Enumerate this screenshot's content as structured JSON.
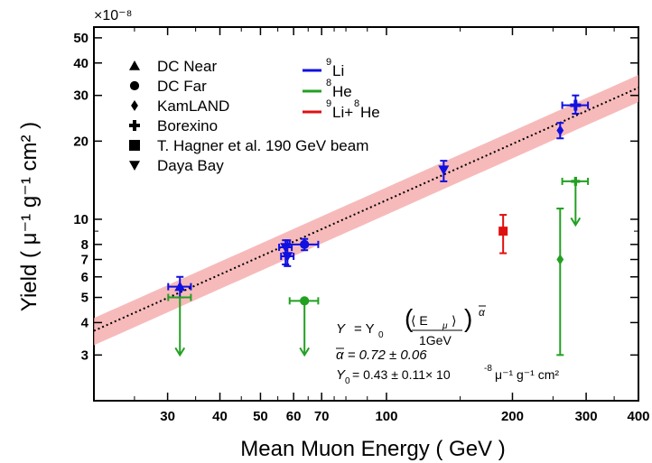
{
  "chart_data": {
    "type": "scatter",
    "title": "",
    "xlabel": "Mean Muon Energy ( GeV )",
    "ylabel": "Yield ( μ⁻¹ g⁻¹ cm² )",
    "x_scale": "log",
    "y_scale": "log",
    "xlim": [
      20,
      400
    ],
    "ylim": [
      2e-08,
      5.5e-07
    ],
    "y_multiplier_label": "×10⁻⁸",
    "x_ticks": [
      {
        "v": 30,
        "label": "30"
      },
      {
        "v": 40,
        "label": "40"
      },
      {
        "v": 50,
        "label": "50"
      },
      {
        "v": 60,
        "label": "60"
      },
      {
        "v": 70,
        "label": "70"
      },
      {
        "v": 100,
        "label": "100"
      },
      {
        "v": 200,
        "label": "200"
      },
      {
        "v": 300,
        "label": "300"
      },
      {
        "v": 400,
        "label": "400"
      }
    ],
    "y_ticks": [
      {
        "v": 3,
        "label": "3"
      },
      {
        "v": 4,
        "label": "4"
      },
      {
        "v": 5,
        "label": "5"
      },
      {
        "v": 6,
        "label": "6"
      },
      {
        "v": 7,
        "label": "7"
      },
      {
        "v": 8,
        "label": "8"
      },
      {
        "v": 10,
        "label": "10"
      },
      {
        "v": 20,
        "label": "20"
      },
      {
        "v": 30,
        "label": "30"
      },
      {
        "v": 40,
        "label": "40"
      },
      {
        "v": 50,
        "label": "50"
      }
    ],
    "marker_legend": [
      {
        "marker": "triangle-up",
        "label": "DC Near"
      },
      {
        "marker": "circle",
        "label": "DC Far"
      },
      {
        "marker": "diamond",
        "label": "KamLAND"
      },
      {
        "marker": "plus",
        "label": "Borexino"
      },
      {
        "marker": "square",
        "label": "T. Hagner et al. 190 GeV beam"
      },
      {
        "marker": "triangle-down",
        "label": "Daya Bay"
      }
    ],
    "color_legend": [
      {
        "color": "#1010e0",
        "sup": "9",
        "label": "Li"
      },
      {
        "color": "#22a022",
        "sup": "8",
        "label": "He"
      },
      {
        "color": "#e01010",
        "sup": "9",
        "label": "Li+",
        "sup2": "8",
        "label2": "He"
      }
    ],
    "points": [
      {
        "experiment": "DC Near",
        "isotope": "9Li",
        "marker": "triangle-up",
        "color": "#1010e0",
        "x": 32.1,
        "y": 5.5,
        "xerr": 2.0,
        "ylo": 5.0,
        "yhi": 6.0
      },
      {
        "experiment": "DC Near",
        "isotope": "8He",
        "marker": "triangle-down",
        "color": "#22a022",
        "x": 32.1,
        "y": 5.0,
        "xerr": 2.0,
        "upper_limit": true,
        "arrow_to": 3.0
      },
      {
        "experiment": "DC Far",
        "isotope": "9Li",
        "marker": "circle",
        "color": "#1010e0",
        "x": 63.7,
        "y": 8.0,
        "xerr": 5.0,
        "ylo": 7.6,
        "yhi": 8.4
      },
      {
        "experiment": "DC Far",
        "isotope": "8He",
        "marker": "circle",
        "color": "#22a022",
        "x": 63.7,
        "y": 4.85,
        "xerr": 5.0,
        "upper_limit": true,
        "arrow_to": 3.0
      },
      {
        "experiment": "Daya Bay",
        "isotope": "9Li",
        "marker": "triangle-down",
        "color": "#1010e0",
        "x": 57.4,
        "y": 7.8,
        "xerr": 2.0,
        "ylo": 6.7,
        "yhi": 8.3
      },
      {
        "experiment": "Daya Bay",
        "isotope": "9Li",
        "marker": "triangle-down",
        "color": "#1010e0",
        "x": 58.0,
        "y": 7.2,
        "xerr": 2.0,
        "ylo": 6.6,
        "yhi": 8.3
      },
      {
        "experiment": "Daya Bay",
        "isotope": "9Li",
        "marker": "triangle-down",
        "color": "#1010e0",
        "x": 137,
        "y": 15.5,
        "xerr": 0,
        "ylo": 14.0,
        "yhi": 16.8
      },
      {
        "experiment": "KamLAND",
        "isotope": "9Li",
        "marker": "diamond",
        "color": "#1010e0",
        "x": 260,
        "y": 22.0,
        "xerr": 0,
        "ylo": 20.5,
        "yhi": 23.5
      },
      {
        "experiment": "KamLAND",
        "isotope": "8He",
        "marker": "diamond",
        "color": "#22a022",
        "x": 260,
        "y": 7.0,
        "xerr": 0,
        "ylo": 3.0,
        "yhi": 11.0
      },
      {
        "experiment": "Borexino",
        "isotope": "9Li",
        "marker": "plus",
        "color": "#1010e0",
        "x": 283,
        "y": 27.5,
        "xerr": 20,
        "ylo": 25.5,
        "yhi": 30.0
      },
      {
        "experiment": "Borexino",
        "isotope": "8He",
        "marker": "plus",
        "color": "#22a022",
        "x": 283,
        "y": 14.0,
        "xerr": 20,
        "upper_limit": true,
        "arrow_to": 9.5
      },
      {
        "experiment": "T. Hagner et al. 190 GeV beam",
        "isotope": "9Li+8He",
        "marker": "square",
        "color": "#e01010",
        "x": 190,
        "y": 9.0,
        "xerr": 0,
        "ylo": 7.4,
        "yhi": 10.4
      }
    ],
    "fit": {
      "alpha": 0.72,
      "alpha_err": 0.06,
      "y0": 0.43,
      "y0_err": 0.11,
      "band_rel_lo": 0.88,
      "band_rel_hi": 1.12,
      "band_color": "#f4a3a3"
    },
    "formula": {
      "line1_Y": "Y",
      "line1_eq": "= Y",
      "line1_sub": "0",
      "line1_frac_top": "⟨ E",
      "line1_frac_top_sub": "μ",
      "line1_frac_top_end": "⟩",
      "line1_frac_bottom": "1GeV",
      "line1_exp": "α",
      "line2": "α   = 0.72 ± 0.06",
      "line3_Y": "Y",
      "line3_sub": "0",
      "line3_rest": " = 0.43 ± 0.11× 10",
      "line3_exp": "-8",
      "line3_units": " μ⁻¹ g⁻¹ cm²"
    }
  }
}
